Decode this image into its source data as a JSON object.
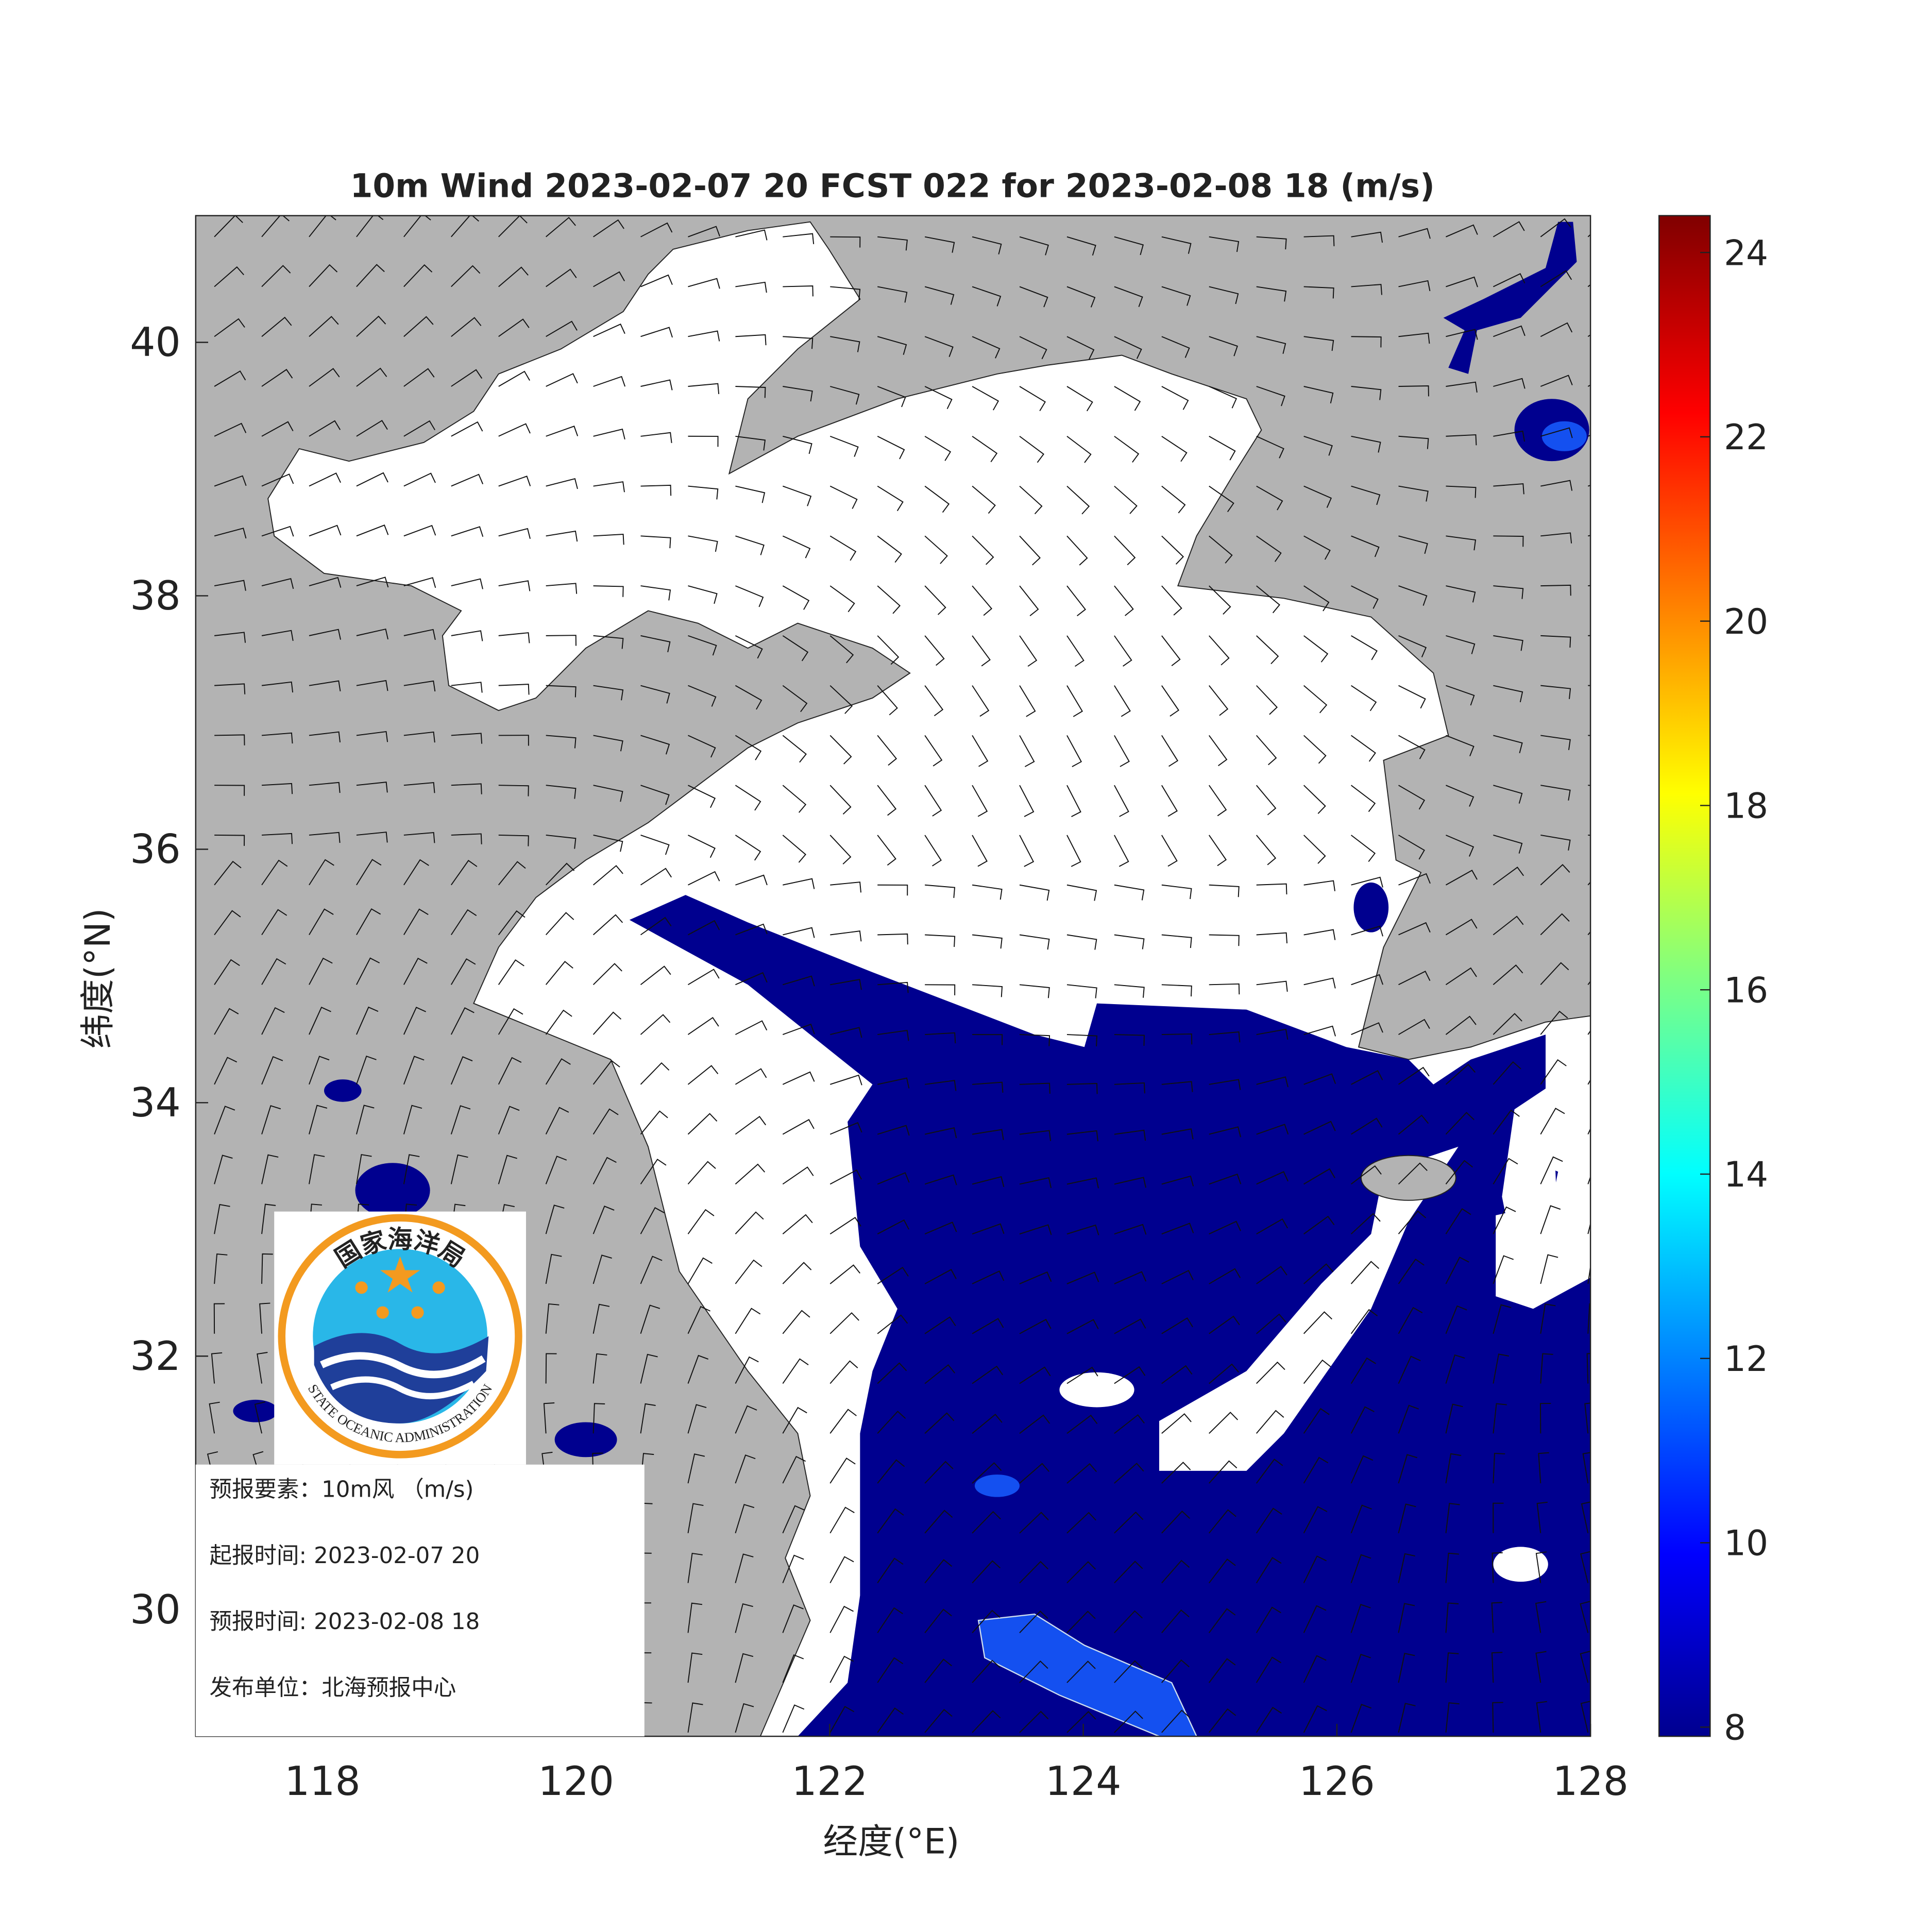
{
  "chart_data": {
    "type": "map",
    "title": "10m Wind 2023-02-07 20 FCST 022 for 2023-02-08 18 (m/s)",
    "x_label": "经度(°E)",
    "y_label": "纬度(°N)",
    "xlim": [
      117,
      128
    ],
    "xticks": [
      118,
      120,
      122,
      124,
      126,
      128
    ],
    "ylim": [
      29,
      41
    ],
    "yticks": [
      30,
      32,
      34,
      36,
      38,
      40
    ],
    "colorbar": {
      "lim": [
        7.9,
        24.4
      ],
      "ticks": [
        8,
        10,
        12,
        14,
        16,
        18,
        20,
        22,
        24
      ]
    },
    "info": [
      "预报要素：10m风 （m/s)",
      "起报时间: 2023-02-07 20",
      "预报时间: 2023-02-08 18",
      "发布单位：北海预报中心"
    ],
    "logo": {
      "top": "国家海洋局",
      "bottom": "STATE OCEANIC ADMINISTRATION"
    }
  }
}
